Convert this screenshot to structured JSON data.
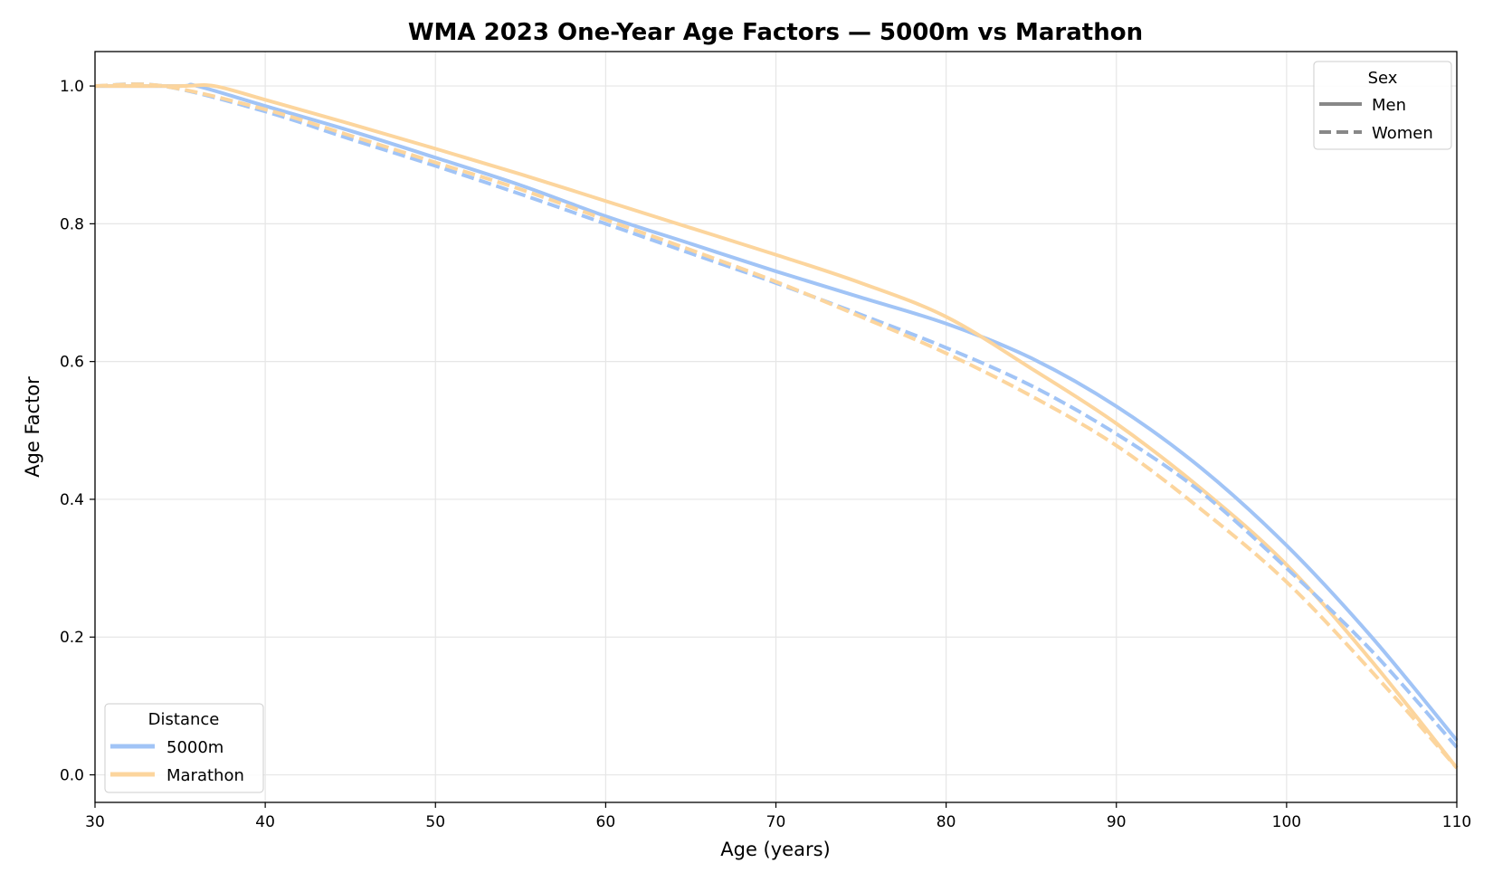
{
  "chart_data": {
    "type": "line",
    "title": "WMA 2023 One-Year Age Factors — 5000m vs Marathon",
    "xlabel": "Age (years)",
    "ylabel": "Age Factor",
    "xlim": [
      30,
      110
    ],
    "ylim": [
      -0.04,
      1.05
    ],
    "xticks": [
      30,
      40,
      50,
      60,
      70,
      80,
      90,
      100,
      110
    ],
    "yticks": [
      0.0,
      0.2,
      0.4,
      0.6,
      0.8,
      1.0
    ],
    "xtick_labels": [
      "30",
      "40",
      "50",
      "60",
      "70",
      "80",
      "90",
      "100",
      "110"
    ],
    "ytick_labels": [
      "0.0",
      "0.2",
      "0.4",
      "0.6",
      "0.8",
      "1.0"
    ],
    "grid": true,
    "colors": {
      "5000m": "#a1c4f6",
      "Marathon": "#fcd59d",
      "legend_line": "#888888"
    },
    "legend_sex": {
      "title": "Sex",
      "placement": "top-right",
      "entries": [
        {
          "label": "Men",
          "style": "solid"
        },
        {
          "label": "Women",
          "style": "dashed"
        }
      ]
    },
    "legend_distance": {
      "title": "Distance",
      "placement": "bottom-left",
      "entries": [
        {
          "label": "5000m",
          "color": "#a1c4f6"
        },
        {
          "label": "Marathon",
          "color": "#fcd59d"
        }
      ]
    },
    "series": [
      {
        "distance": "5000m",
        "sex": "Men",
        "style": "solid",
        "color": "#a1c4f6",
        "x": [
          30,
          35,
          36,
          40,
          45,
          50,
          55,
          60,
          65,
          70,
          75,
          80,
          85,
          90,
          95,
          100,
          105,
          110
        ],
        "y": [
          1.0,
          1.0,
          1.0,
          0.971,
          0.935,
          0.896,
          0.856,
          0.811,
          0.771,
          0.731,
          0.693,
          0.655,
          0.605,
          0.535,
          0.445,
          0.333,
          0.2,
          0.05
        ]
      },
      {
        "distance": "Marathon",
        "sex": "Men",
        "style": "solid",
        "color": "#fcd59d",
        "x": [
          30,
          35,
          37,
          40,
          45,
          50,
          55,
          60,
          65,
          70,
          75,
          80,
          85,
          90,
          95,
          100,
          105,
          110
        ],
        "y": [
          1.0,
          1.0,
          1.0,
          0.98,
          0.945,
          0.909,
          0.872,
          0.833,
          0.794,
          0.755,
          0.714,
          0.665,
          0.59,
          0.51,
          0.415,
          0.305,
          0.165,
          0.01
        ]
      },
      {
        "distance": "5000m",
        "sex": "Women",
        "style": "dashed",
        "color": "#a1c4f6",
        "x": [
          30,
          34,
          40,
          45,
          50,
          55,
          60,
          65,
          70,
          75,
          80,
          85,
          90,
          95,
          100,
          105,
          110
        ],
        "y": [
          1.0,
          1.0,
          0.963,
          0.923,
          0.884,
          0.843,
          0.8,
          0.757,
          0.714,
          0.668,
          0.62,
          0.565,
          0.495,
          0.41,
          0.3,
          0.18,
          0.04
        ]
      },
      {
        "distance": "Marathon",
        "sex": "Women",
        "style": "dashed",
        "color": "#fcd59d",
        "x": [
          30,
          34,
          40,
          45,
          50,
          55,
          60,
          65,
          70,
          75,
          80,
          85,
          90,
          95,
          100,
          105,
          110
        ],
        "y": [
          1.0,
          1.0,
          0.966,
          0.928,
          0.889,
          0.85,
          0.806,
          0.762,
          0.716,
          0.665,
          0.612,
          0.55,
          0.478,
          0.385,
          0.28,
          0.15,
          0.01
        ]
      }
    ]
  }
}
